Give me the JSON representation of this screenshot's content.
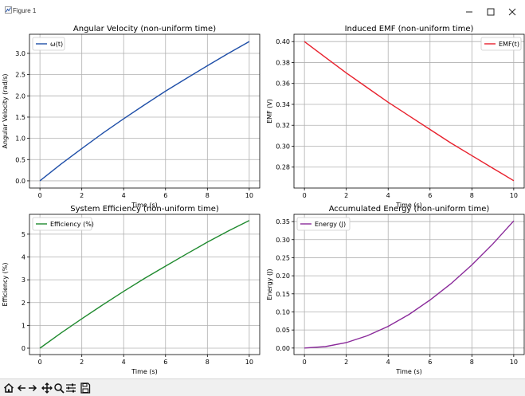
{
  "window": {
    "title": "Figure 1",
    "controls": [
      "minimize-icon",
      "maximize-icon",
      "close-icon"
    ]
  },
  "toolbar": {
    "buttons": [
      "home-icon",
      "back-icon",
      "forward-icon",
      "pan-icon",
      "zoom-icon",
      "configure-subplots-icon",
      "save-icon"
    ]
  },
  "chart_data": [
    {
      "type": "line",
      "title": "Angular Velocity (non-uniform time)",
      "xlabel": "Time (s)",
      "ylabel": "Angular Velocity (rad/s)",
      "xlim": [
        -0.5,
        10.5
      ],
      "ylim": [
        -0.17,
        3.45
      ],
      "xticks": [
        "0",
        "2",
        "4",
        "6",
        "8",
        "10"
      ],
      "yticks": [
        "0.0",
        "0.5",
        "1.0",
        "1.5",
        "2.0",
        "2.5",
        "3.0"
      ],
      "grid": true,
      "legend_position": "top-left",
      "series": [
        {
          "name": "ω(t)",
          "color": "#1f4fa8",
          "x": [
            0,
            1,
            2,
            3,
            4,
            5,
            6,
            7,
            8,
            9,
            10
          ],
          "y": [
            0,
            0.39,
            0.76,
            1.12,
            1.46,
            1.79,
            2.11,
            2.41,
            2.71,
            3.0,
            3.28
          ]
        }
      ]
    },
    {
      "type": "line",
      "title": "Induced EMF (non-uniform time)",
      "xlabel": "Time (s)",
      "ylabel": "EMF (V)",
      "xlim": [
        -0.5,
        10.5
      ],
      "ylim": [
        0.26,
        0.407
      ],
      "xticks": [
        "0",
        "2",
        "4",
        "6",
        "8",
        "10"
      ],
      "yticks": [
        "0.28",
        "0.30",
        "0.32",
        "0.34",
        "0.36",
        "0.38",
        "0.40"
      ],
      "grid": true,
      "legend_position": "top-right",
      "series": [
        {
          "name": "EMF(t)",
          "color": "#e8202c",
          "x": [
            0,
            1,
            2,
            3,
            4,
            5,
            6,
            7,
            8,
            9,
            10
          ],
          "y": [
            0.4,
            0.385,
            0.37,
            0.356,
            0.342,
            0.329,
            0.316,
            0.303,
            0.291,
            0.279,
            0.267
          ]
        }
      ]
    },
    {
      "type": "line",
      "title": "System Efficiency (non-uniform time)",
      "xlabel": "Time (s)",
      "ylabel": "Efficiency (%)",
      "xlim": [
        -0.5,
        10.5
      ],
      "ylim": [
        -0.28,
        5.87
      ],
      "xticks": [
        "0",
        "2",
        "4",
        "6",
        "8",
        "10"
      ],
      "yticks": [
        "0",
        "1",
        "2",
        "3",
        "4",
        "5"
      ],
      "grid": true,
      "legend_position": "top-left",
      "series": [
        {
          "name": "Efficiency (%)",
          "color": "#1f8a2e",
          "x": [
            0,
            1,
            2,
            3,
            4,
            5,
            6,
            7,
            8,
            9,
            10
          ],
          "y": [
            0,
            0.66,
            1.29,
            1.9,
            2.49,
            3.06,
            3.6,
            4.13,
            4.65,
            5.14,
            5.6
          ]
        }
      ]
    },
    {
      "type": "line",
      "title": "Accumulated Energy (non-uniform time)",
      "xlabel": "Time (s)",
      "ylabel": "Energy (J)",
      "xlim": [
        -0.5,
        10.5
      ],
      "ylim": [
        -0.018,
        0.37
      ],
      "xticks": [
        "0",
        "2",
        "4",
        "6",
        "8",
        "10"
      ],
      "yticks": [
        "0.00",
        "0.05",
        "0.10",
        "0.15",
        "0.20",
        "0.25",
        "0.30",
        "0.35"
      ],
      "grid": true,
      "legend_position": "top-left",
      "series": [
        {
          "name": "Energy (J)",
          "color": "#8a2a9a",
          "x": [
            0,
            1,
            2,
            3,
            4,
            5,
            6,
            7,
            8,
            9,
            10
          ],
          "y": [
            0,
            0.004,
            0.015,
            0.034,
            0.06,
            0.093,
            0.133,
            0.178,
            0.23,
            0.288,
            0.352
          ]
        }
      ]
    }
  ]
}
